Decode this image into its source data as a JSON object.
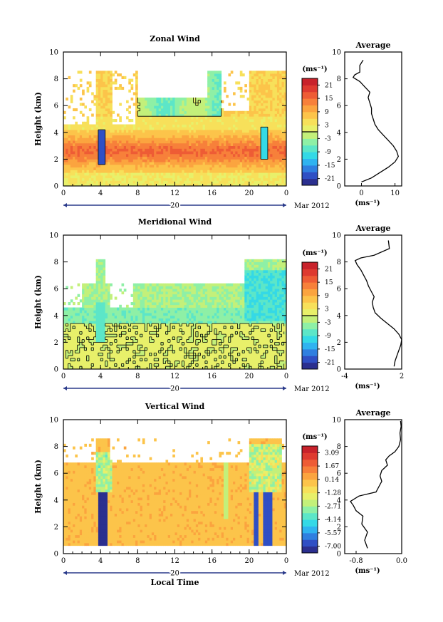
{
  "figure": {
    "date_label": "Mar 2012",
    "day_label": "20",
    "local_time_label": "Local Time"
  },
  "chart_data": [
    {
      "type": "heatmap",
      "title": "Zonal Wind",
      "ylabel": "Height (km)",
      "unit": "(ms⁻¹)",
      "xlim": [
        0,
        24
      ],
      "xticks": [
        "0",
        "4",
        "8",
        "12",
        "16",
        "20",
        "0"
      ],
      "ylim": [
        0,
        10
      ],
      "yticks": [
        "0",
        "2",
        "4",
        "6",
        "8",
        "10"
      ],
      "colorbar_ticks": [
        "21",
        "15",
        "9",
        "3",
        "-3",
        "-9",
        "-15",
        "-21"
      ],
      "colorbar_range": [
        -24,
        24
      ],
      "zero_contour": true,
      "palette": [
        "#2b2f8f",
        "#2f4fc4",
        "#2f7fe0",
        "#2fb3f0",
        "#34d9e6",
        "#5ce6c8",
        "#8ef0a6",
        "#c3f07a",
        "#e8f06a",
        "#f7e05a",
        "#fcc44a",
        "#fba43f",
        "#f7803a",
        "#ee5c35",
        "#de3a30",
        "#c8222b"
      ],
      "profile": {
        "title": "Average",
        "xlabel": "(ms⁻¹)",
        "xlim": [
          -5,
          12
        ],
        "xticks": [
          "0",
          "10"
        ],
        "height": [
          0.3,
          0.6,
          1.0,
          1.4,
          1.8,
          2.2,
          2.6,
          3.0,
          3.4,
          3.8,
          4.2,
          4.6,
          5.0,
          5.4,
          5.8,
          6.2,
          6.6,
          7.0,
          7.4,
          7.8,
          8.1,
          8.3,
          8.5,
          9.0,
          9.4
        ],
        "value": [
          0,
          3,
          5.5,
          8,
          10,
          11,
          10.5,
          9.5,
          8,
          6.5,
          5,
          4,
          3.5,
          3,
          3,
          2.5,
          2,
          2.5,
          1,
          -0.5,
          -2.5,
          -2,
          -0.5,
          -0.5,
          0.5
        ]
      }
    },
    {
      "type": "heatmap",
      "title": "Meridional Wind",
      "ylabel": "Height (km)",
      "unit": "(ms⁻¹)",
      "xlim": [
        0,
        24
      ],
      "xticks": [
        "0",
        "4",
        "8",
        "12",
        "16",
        "20",
        "0"
      ],
      "ylim": [
        0,
        10
      ],
      "yticks": [
        "0",
        "2",
        "4",
        "6",
        "8",
        "10"
      ],
      "colorbar_ticks": [
        "21",
        "15",
        "9",
        "3",
        "-3",
        "-9",
        "-15",
        "-21"
      ],
      "colorbar_range": [
        -24,
        24
      ],
      "zero_contour": true,
      "palette": [
        "#2b2f8f",
        "#2f4fc4",
        "#2f7fe0",
        "#2fb3f0",
        "#34d9e6",
        "#5ce6c8",
        "#8ef0a6",
        "#c3f07a",
        "#e8f06a",
        "#f7e05a",
        "#fcc44a",
        "#fba43f",
        "#f7803a",
        "#ee5c35",
        "#de3a30",
        "#c8222b"
      ],
      "profile": {
        "title": "Average",
        "xlabel": "(ms⁻¹)",
        "xlim": [
          -4,
          2
        ],
        "xticks": [
          "-4",
          "2"
        ],
        "height": [
          0.2,
          0.6,
          1.0,
          1.4,
          1.8,
          2.2,
          2.6,
          3.0,
          3.4,
          3.8,
          4.2,
          4.6,
          5.0,
          5.4,
          5.8,
          6.2,
          6.6,
          7.0,
          7.4,
          7.8,
          8.1,
          8.3,
          8.5,
          9.0,
          9.6
        ],
        "value": [
          1.2,
          1.3,
          1.5,
          1.7,
          1.9,
          2.0,
          1.7,
          1.2,
          0.5,
          -0.2,
          -0.8,
          -1.0,
          -1.1,
          -0.9,
          -1.2,
          -1.5,
          -1.7,
          -2.0,
          -2.3,
          -2.7,
          -2.9,
          -2.3,
          -0.9,
          0.7,
          0.6
        ]
      }
    },
    {
      "type": "heatmap",
      "title": "Vertical Wind",
      "ylabel": "Height (km)",
      "xlabel": "Local Time",
      "unit": "(ms⁻¹)",
      "xlim": [
        0,
        24
      ],
      "xticks": [
        "0",
        "4",
        "8",
        "12",
        "16",
        "20",
        "0"
      ],
      "ylim": [
        0,
        10
      ],
      "yticks": [
        "0",
        "2",
        "4",
        "6",
        "8",
        "10"
      ],
      "colorbar_ticks": [
        "3.09",
        "1.67",
        "0.14",
        "-1.28",
        "-2.71",
        "-4.14",
        "-5.57",
        "-7.00"
      ],
      "colorbar_range": [
        -7.7,
        3.8
      ],
      "zero_contour": false,
      "palette": [
        "#2b2f8f",
        "#2f4fc4",
        "#2f7fe0",
        "#2fb3f0",
        "#34d9e6",
        "#5ce6c8",
        "#8ef0a6",
        "#c3f07a",
        "#e8f06a",
        "#f7e05a",
        "#fcc44a",
        "#fba43f",
        "#f7803a",
        "#ee5c35",
        "#de3a30",
        "#c8222b"
      ],
      "profile": {
        "title": "Average",
        "xlabel": "(ms⁻¹)",
        "xlim": [
          -1.0,
          0.0
        ],
        "xticks": [
          "-0.8",
          "0.0"
        ],
        "height": [
          0.4,
          1.0,
          1.6,
          2.2,
          2.8,
          3.2,
          3.6,
          3.9,
          4.3,
          4.6,
          5.0,
          5.4,
          5.8,
          6.2,
          6.6,
          7.0,
          7.3,
          7.6,
          8.0,
          8.5,
          9.0,
          9.5,
          9.9
        ],
        "value": [
          -0.6,
          -0.65,
          -0.6,
          -0.7,
          -0.68,
          -0.8,
          -0.85,
          -0.9,
          -0.75,
          -0.45,
          -0.4,
          -0.35,
          -0.38,
          -0.35,
          -0.25,
          -0.28,
          -0.22,
          -0.12,
          -0.05,
          -0.02,
          -0.03,
          -0.01,
          -0.02
        ]
      }
    }
  ]
}
